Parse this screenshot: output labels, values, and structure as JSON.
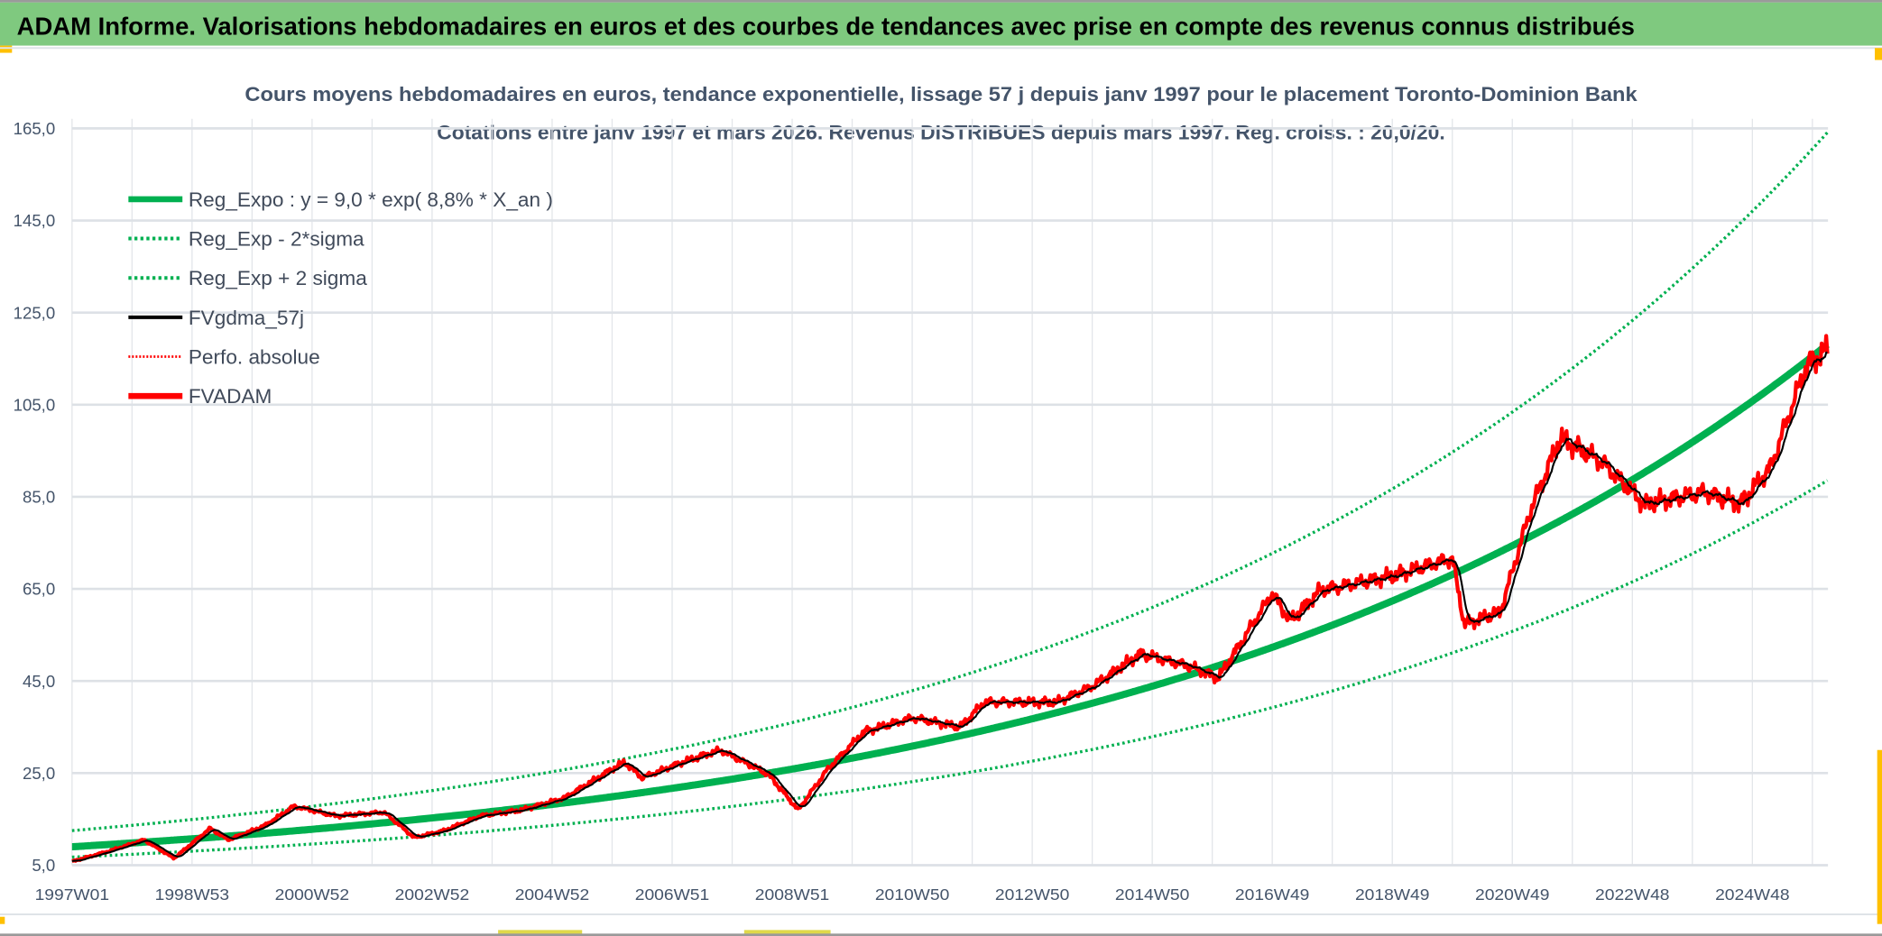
{
  "header": {
    "title": "ADAM Informe. Valorisations hebdomadaires en euros et des courbes de tendances avec prise en compte des revenus connus distribués",
    "bg_color": "#7fc97f"
  },
  "chart_data": {
    "type": "line",
    "title": "Cours moyens hebdomadaires en euros, tendance exponentielle, lissage 57 j depuis janv 1997 pour le placement Toronto-Dominion Bank",
    "subtitle": "Cotations entre janv 1997 et mars 2026. Revenus DISTRIBUES depuis mars 1997. Reg. croiss. : 20,0/20.",
    "xlim": [
      1997.0,
      2026.26
    ],
    "ylim": [
      5,
      165
    ],
    "y_ticks": [
      "5,0",
      "25,0",
      "45,0",
      "65,0",
      "85,0",
      "105,0",
      "125,0",
      "145,0",
      "165,0"
    ],
    "y_tick_values": [
      5,
      25,
      45,
      65,
      85,
      105,
      125,
      145,
      165
    ],
    "x_ticks": [
      "1997W01",
      "1998W53",
      "2000W52",
      "2002W52",
      "2004W52",
      "2006W51",
      "2008W51",
      "2010W50",
      "2012W50",
      "2014W50",
      "2016W49",
      "2018W49",
      "2020W49",
      "2022W48",
      "2024W48"
    ],
    "x_tick_values": [
      1997,
      1999,
      2001,
      2003,
      2005,
      2007,
      2009,
      2011,
      2013,
      2015,
      2017,
      2019,
      2021,
      2023,
      2025
    ],
    "grid": true,
    "legend_position": "top-left",
    "regression": {
      "a": 9.0,
      "rate": 0.088,
      "lower_factor": 0.75,
      "upper_factor": 1.39
    },
    "legend": [
      {
        "label": "Reg_Expo : y = 9,0 * exp( 8,8% *  X_an )",
        "color": "#00b050",
        "style": "solid-thick"
      },
      {
        "label": "Reg_Exp - 2*sigma",
        "color": "#00b050",
        "style": "dotted"
      },
      {
        "label": "Reg_Exp + 2 sigma",
        "color": "#00b050",
        "style": "dotted"
      },
      {
        "label": "FVgdma_57j",
        "color": "#000000",
        "style": "solid"
      },
      {
        "label": "Perfo. absolue",
        "color": "#ff0000",
        "style": "dotted"
      },
      {
        "label": "FVADAM",
        "color": "#ff0000",
        "style": "solid-thick"
      }
    ],
    "fvadam_keypoints": [
      [
        1997.0,
        5.8
      ],
      [
        1997.6,
        8
      ],
      [
        1998.2,
        10.5
      ],
      [
        1998.7,
        6.5
      ],
      [
        1999.3,
        13
      ],
      [
        1999.6,
        10.5
      ],
      [
        2000.2,
        13.5
      ],
      [
        2000.7,
        17.8
      ],
      [
        2001.4,
        15.7
      ],
      [
        2002.2,
        16.5
      ],
      [
        2002.7,
        11
      ],
      [
        2003.2,
        12.5
      ],
      [
        2003.8,
        15.7
      ],
      [
        2004.5,
        17
      ],
      [
        2005.2,
        19.6
      ],
      [
        2006.2,
        27.4
      ],
      [
        2006.5,
        24
      ],
      [
        2007.2,
        27.5
      ],
      [
        2007.8,
        30
      ],
      [
        2008.6,
        24.8
      ],
      [
        2009.1,
        17
      ],
      [
        2009.6,
        26
      ],
      [
        2010.2,
        34
      ],
      [
        2011.0,
        37
      ],
      [
        2011.8,
        35
      ],
      [
        2012.2,
        40.4
      ],
      [
        2013.4,
        40.4
      ],
      [
        2014.0,
        43.8
      ],
      [
        2014.8,
        50.9
      ],
      [
        2015.6,
        48.3
      ],
      [
        2016.1,
        45.6
      ],
      [
        2017.0,
        64
      ],
      [
        2017.3,
        58
      ],
      [
        2017.8,
        64.7
      ],
      [
        2019.0,
        67.8
      ],
      [
        2020.0,
        71.7
      ],
      [
        2020.2,
        57.4
      ],
      [
        2020.8,
        60
      ],
      [
        2021.3,
        82
      ],
      [
        2021.8,
        97.8
      ],
      [
        2022.5,
        92.5
      ],
      [
        2023.2,
        83.4
      ],
      [
        2024.2,
        86
      ],
      [
        2024.8,
        83.4
      ],
      [
        2025.3,
        91.3
      ],
      [
        2025.9,
        113.4
      ],
      [
        2026.26,
        117
      ]
    ],
    "noise_pct": 3,
    "smoothing_weeks": 8
  }
}
